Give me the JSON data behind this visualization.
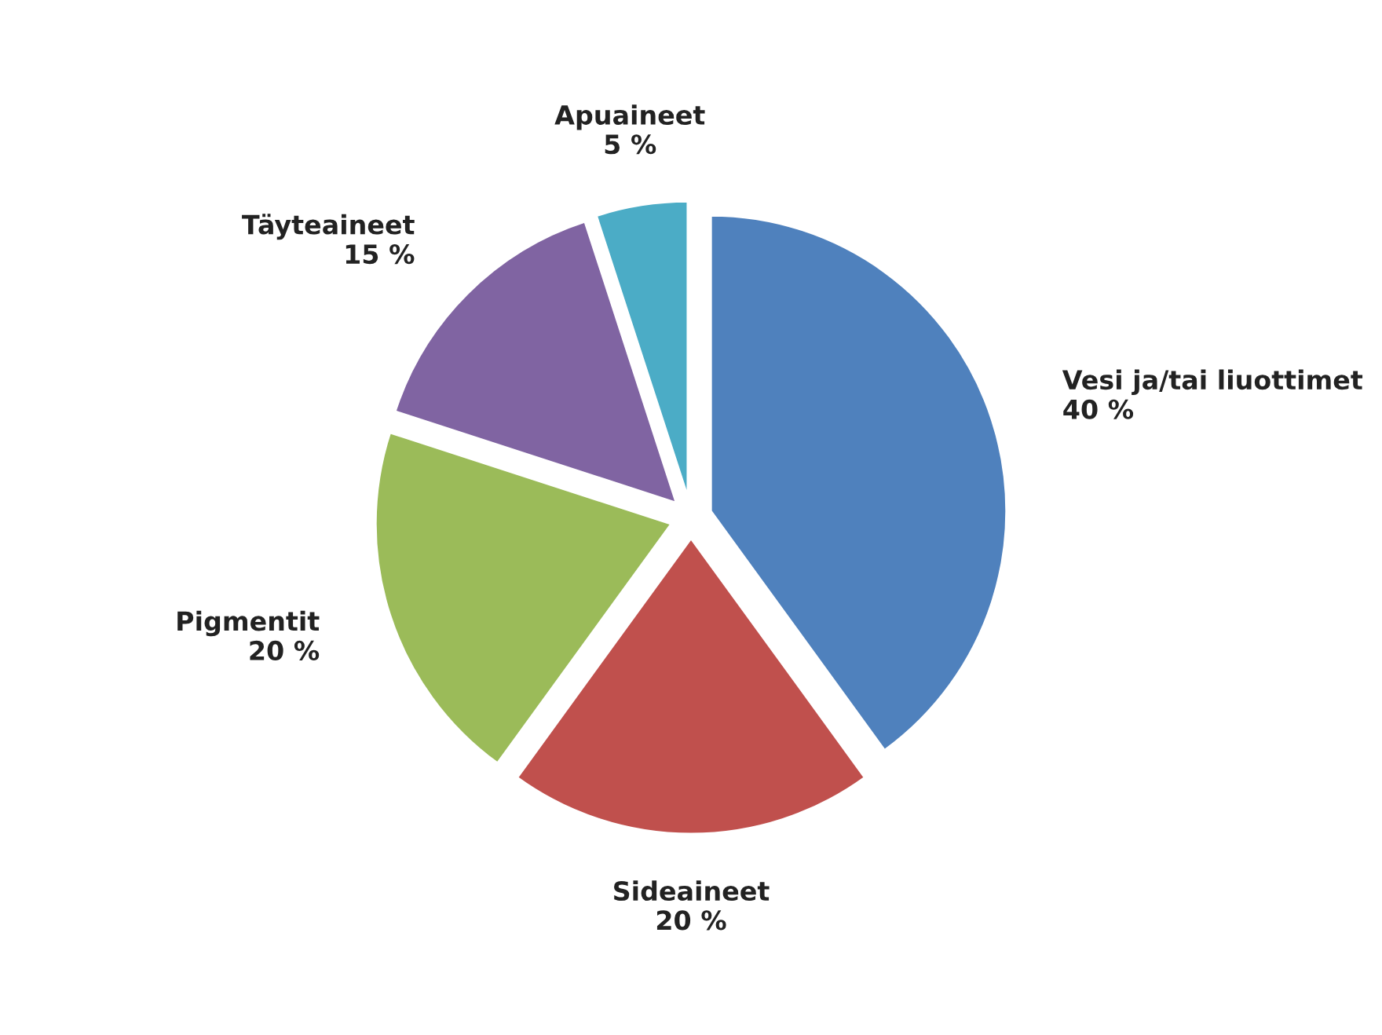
{
  "chart_data": {
    "type": "pie",
    "categories": [
      "Vesi ja/tai liuottimet",
      "Sideaineet",
      "Pigmentit",
      "Täyteaineet",
      "Apuaineet"
    ],
    "values": [
      40,
      20,
      20,
      15,
      5
    ],
    "value_labels": [
      "40 %",
      "20 %",
      "20 %",
      "15 %",
      "5 %"
    ],
    "colors": [
      "#4f81bd",
      "#c0504d",
      "#9bbb59",
      "#8064a2",
      "#4bacc6"
    ]
  }
}
